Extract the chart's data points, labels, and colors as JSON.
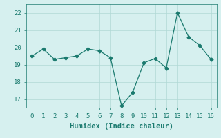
{
  "x": [
    0,
    1,
    2,
    3,
    4,
    5,
    6,
    7,
    8,
    9,
    10,
    11,
    12,
    13,
    14,
    15,
    16
  ],
  "y": [
    19.5,
    19.9,
    19.3,
    19.4,
    19.5,
    19.9,
    19.8,
    19.4,
    16.6,
    17.4,
    19.1,
    19.35,
    18.8,
    22.0,
    20.6,
    20.1,
    19.3
  ],
  "line_color": "#1a7a6e",
  "marker": "D",
  "marker_size": 2.5,
  "linewidth": 0.9,
  "xlabel": "Humidex (Indice chaleur)",
  "xlim": [
    -0.5,
    16.5
  ],
  "ylim": [
    16.5,
    22.5
  ],
  "yticks": [
    17,
    18,
    19,
    20,
    21,
    22
  ],
  "xticks": [
    0,
    1,
    2,
    3,
    4,
    5,
    6,
    7,
    8,
    9,
    10,
    11,
    12,
    13,
    14,
    15,
    16
  ],
  "bg_color": "#d6f0ef",
  "grid_color": "#b0d8d5",
  "tick_color": "#1a7a6e",
  "label_color": "#1a7a6e",
  "tick_fontsize": 6.5,
  "xlabel_fontsize": 7.5
}
